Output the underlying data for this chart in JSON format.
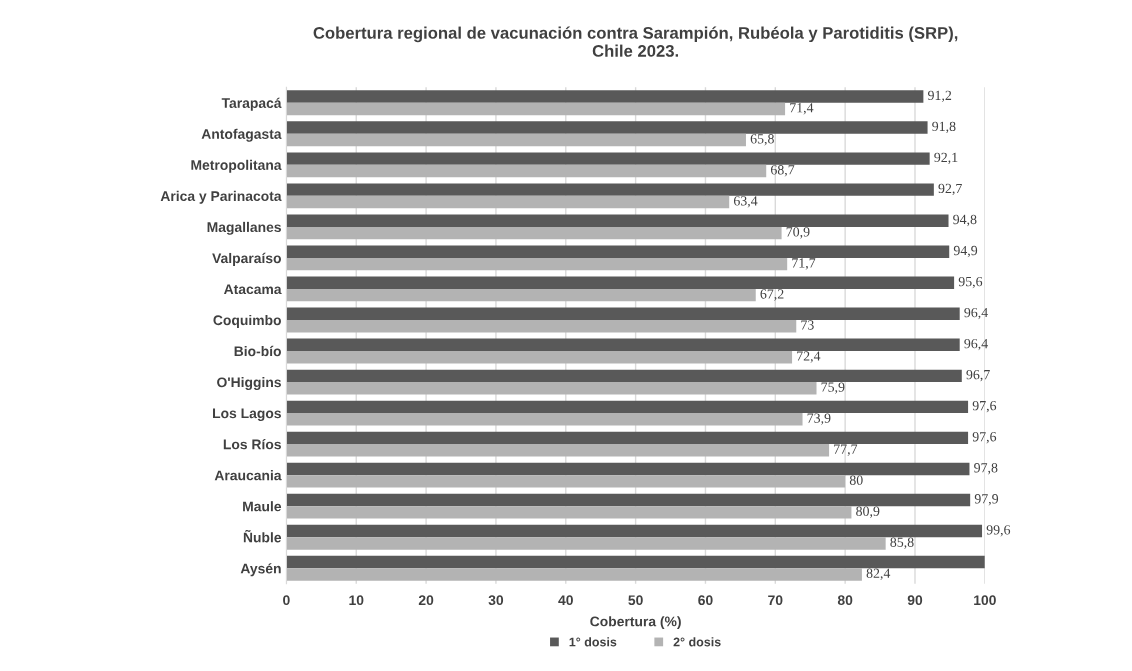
{
  "chart_data": {
    "type": "bar",
    "orientation": "horizontal",
    "title": "Cobertura regional de vacunación contra Sarampión, Rubéola y Parotiditis (SRP),\nChile 2023.",
    "xlabel": "Cobertura (%)",
    "categories": [
      "Tarapacá",
      "Antofagasta",
      "Metropolitana",
      "Arica y Parinacota",
      "Magallanes",
      "Valparaíso",
      "Atacama",
      "Coquimbo",
      "Bio-bío",
      "O'Higgins",
      "Los Lagos",
      "Los Ríos",
      "Araucania",
      "Maule",
      "Ñuble",
      "Aysén"
    ],
    "series": [
      {
        "name": "1° dosis",
        "color": "#595959",
        "values": [
          91.2,
          91.8,
          92.1,
          92.7,
          94.8,
          94.9,
          95.6,
          96.4,
          96.4,
          96.7,
          97.6,
          97.6,
          97.8,
          97.9,
          99.6,
          100
        ],
        "value_labels": [
          "91,2",
          "91,8",
          "92,1",
          "92,7",
          "94,8",
          "94,9",
          "95,6",
          "96,4",
          "96,4",
          "96,7",
          "97,6",
          "97,6",
          "97,8",
          "97,9",
          "99,6",
          null
        ]
      },
      {
        "name": "2° dosis",
        "color": "#b3b3b3",
        "values": [
          71.4,
          65.8,
          68.7,
          63.4,
          70.9,
          71.7,
          67.2,
          73,
          72.4,
          75.9,
          73.9,
          77.7,
          80,
          80.9,
          85.8,
          82.4
        ],
        "value_labels": [
          "71,4",
          "65,8",
          "68,7",
          "63,4",
          "70,9",
          "71,7",
          "67,2",
          "73",
          "72,4",
          "75,9",
          "73,9",
          "77,7",
          "80",
          "80,9",
          "85,8",
          "82,4"
        ]
      }
    ],
    "xlim": [
      0,
      100
    ],
    "xticks": [
      0,
      10,
      20,
      30,
      40,
      50,
      60,
      70,
      80,
      90,
      100
    ],
    "grid": "x",
    "legend": "bottom"
  }
}
